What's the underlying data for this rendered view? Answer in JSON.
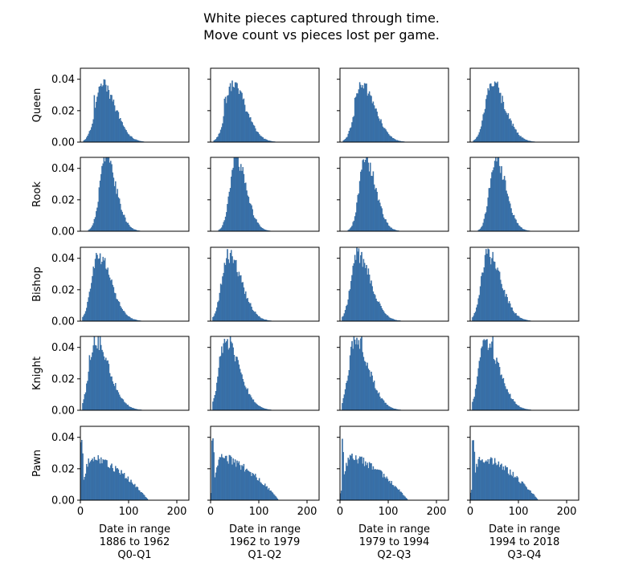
{
  "title": {
    "line1": "White  pieces  captured through time.",
    "line2": "Move count vs pieces lost per game."
  },
  "colors": {
    "bar_fill": "#3b75af",
    "bar_edge": "#2d5f92"
  },
  "chart_data": {
    "type": "histogram-grid",
    "rows": [
      "Queen",
      "Rook",
      "Bishop",
      "Knight",
      "Pawn"
    ],
    "columns": [
      {
        "label_lines": [
          "Date in range",
          "1886 to 1962",
          "Q0-Q1"
        ]
      },
      {
        "label_lines": [
          "Date in range",
          "1962 to 1979",
          "Q1-Q2"
        ]
      },
      {
        "label_lines": [
          "Date in range",
          "1979 to 1994",
          "Q2-Q3"
        ]
      },
      {
        "label_lines": [
          "Date in range",
          "1994 to 2018",
          "Q3-Q4"
        ]
      }
    ],
    "xlim": [
      0,
      225
    ],
    "x_ticks": [
      0,
      100,
      200
    ],
    "x_tick_labels": [
      "0",
      "100",
      "200"
    ],
    "ylim": [
      0,
      0.047
    ],
    "y_ticks": [
      0.0,
      0.02,
      0.04
    ],
    "y_tick_labels": [
      "0.00",
      "0.02",
      "0.04"
    ],
    "bin_width": 2,
    "distributions": {
      "Queen": {
        "shape": "lognormal",
        "peak_x": 45,
        "peak_y": 0.036,
        "left_width": 14,
        "right_width": 28,
        "start_x": 6,
        "spikes": [
          [
            50,
            0.04
          ],
          [
            38,
            0.038
          ],
          [
            28,
            0.03
          ]
        ]
      },
      "Rook": {
        "shape": "lognormal",
        "peak_x": 52,
        "peak_y": 0.046,
        "left_width": 12,
        "right_width": 22,
        "start_x": 16,
        "spikes": [
          [
            52,
            0.052
          ]
        ]
      },
      "Bishop": {
        "shape": "lognormal",
        "peak_x": 36,
        "peak_y": 0.042,
        "left_width": 13,
        "right_width": 28,
        "start_x": 4,
        "spikes": [
          [
            40,
            0.044
          ]
        ]
      },
      "Knight": {
        "shape": "lognormal",
        "peak_x": 30,
        "peak_y": 0.044,
        "left_width": 12,
        "right_width": 30,
        "start_x": 4,
        "spikes": [
          [
            18,
            0.035
          ],
          [
            40,
            0.048
          ]
        ]
      },
      "Pawn": {
        "shape": "broad",
        "peak_x": 20,
        "peak_y": 0.027,
        "left_width": 10,
        "right_width": 90,
        "start_x": 0,
        "spikes": [
          [
            1,
            0.04
          ],
          [
            3,
            0.032
          ]
        ]
      }
    }
  }
}
